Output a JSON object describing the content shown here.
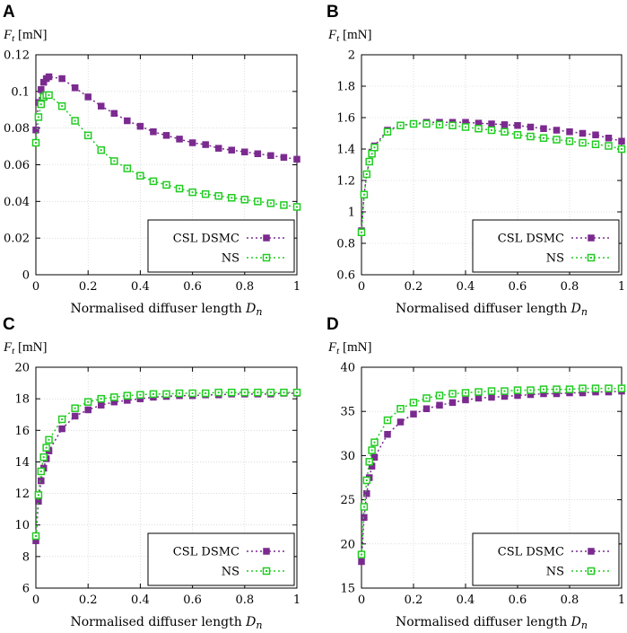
{
  "panels": [
    {
      "letter": "A",
      "y_label": "F_t [mN]",
      "chart_data": {
        "type": "line",
        "xlabel": "Normalised diffuser length D_n",
        "ylabel": "F_t [mN]",
        "xlim": [
          0,
          1
        ],
        "ylim": [
          0,
          0.12
        ],
        "xticks": [
          "0",
          "0.2",
          "0.4",
          "0.6",
          "0.8",
          "1"
        ],
        "yticks": [
          "0",
          "0.02",
          "0.04",
          "0.06",
          "0.08",
          "0.1",
          "0.12"
        ],
        "legend_position": "bottom-right",
        "series": [
          {
            "name": "CSL DSMC",
            "color": "#7b2a8f",
            "marker": "filled-square",
            "x": [
              0,
              0.01,
              0.02,
              0.03,
              0.04,
              0.05,
              0.1,
              0.15,
              0.2,
              0.25,
              0.3,
              0.35,
              0.4,
              0.45,
              0.5,
              0.55,
              0.6,
              0.65,
              0.7,
              0.75,
              0.8,
              0.85,
              0.9,
              0.95,
              1.0
            ],
            "values": [
              0.079,
              0.094,
              0.101,
              0.105,
              0.107,
              0.108,
              0.107,
              0.102,
              0.097,
              0.092,
              0.088,
              0.084,
              0.081,
              0.078,
              0.076,
              0.074,
              0.072,
              0.071,
              0.069,
              0.068,
              0.067,
              0.066,
              0.065,
              0.064,
              0.063
            ]
          },
          {
            "name": "NS",
            "color": "#22cc22",
            "marker": "open-square",
            "x": [
              0,
              0.01,
              0.02,
              0.03,
              0.04,
              0.05,
              0.1,
              0.15,
              0.2,
              0.25,
              0.3,
              0.35,
              0.4,
              0.45,
              0.5,
              0.55,
              0.6,
              0.65,
              0.7,
              0.75,
              0.8,
              0.85,
              0.9,
              0.95,
              1.0
            ],
            "values": [
              0.072,
              0.086,
              0.093,
              0.097,
              0.098,
              0.098,
              0.092,
              0.084,
              0.076,
              0.068,
              0.062,
              0.058,
              0.054,
              0.051,
              0.049,
              0.047,
              0.045,
              0.044,
              0.043,
              0.042,
              0.041,
              0.04,
              0.039,
              0.038,
              0.037
            ]
          }
        ]
      }
    },
    {
      "letter": "B",
      "y_label": "F_t [mN]",
      "chart_data": {
        "type": "line",
        "xlabel": "Normalised diffuser length D_n",
        "ylabel": "F_t [mN]",
        "xlim": [
          0,
          1
        ],
        "ylim": [
          0.6,
          2
        ],
        "xticks": [
          "0",
          "0.2",
          "0.4",
          "0.6",
          "0.8",
          "1"
        ],
        "yticks": [
          "0.6",
          "0.8",
          "1",
          "1.2",
          "1.4",
          "1.6",
          "1.8",
          "2"
        ],
        "legend_position": "bottom-right",
        "series": [
          {
            "name": "CSL DSMC",
            "color": "#7b2a8f",
            "marker": "filled-square",
            "x": [
              0,
              0.01,
              0.02,
              0.03,
              0.04,
              0.05,
              0.1,
              0.15,
              0.2,
              0.25,
              0.3,
              0.35,
              0.4,
              0.45,
              0.5,
              0.55,
              0.6,
              0.65,
              0.7,
              0.75,
              0.8,
              0.85,
              0.9,
              0.95,
              1.0
            ],
            "values": [
              0.88,
              1.11,
              1.24,
              1.32,
              1.38,
              1.42,
              1.52,
              1.55,
              1.56,
              1.57,
              1.57,
              1.57,
              1.57,
              1.565,
              1.56,
              1.555,
              1.55,
              1.54,
              1.53,
              1.52,
              1.51,
              1.5,
              1.49,
              1.47,
              1.45
            ]
          },
          {
            "name": "NS",
            "color": "#22cc22",
            "marker": "open-square",
            "x": [
              0,
              0.01,
              0.02,
              0.03,
              0.04,
              0.05,
              0.1,
              0.15,
              0.2,
              0.25,
              0.3,
              0.35,
              0.4,
              0.45,
              0.5,
              0.55,
              0.6,
              0.65,
              0.7,
              0.75,
              0.8,
              0.85,
              0.9,
              0.95,
              1.0
            ],
            "values": [
              0.87,
              1.11,
              1.24,
              1.32,
              1.37,
              1.41,
              1.51,
              1.55,
              1.56,
              1.56,
              1.555,
              1.55,
              1.54,
              1.53,
              1.52,
              1.51,
              1.49,
              1.48,
              1.47,
              1.46,
              1.45,
              1.44,
              1.43,
              1.42,
              1.4
            ]
          }
        ]
      }
    },
    {
      "letter": "C",
      "y_label": "F_t [mN]",
      "chart_data": {
        "type": "line",
        "xlabel": "Normalised diffuser length D_n",
        "ylabel": "F_t [mN]",
        "xlim": [
          0,
          1
        ],
        "ylim": [
          6,
          20
        ],
        "xticks": [
          "0",
          "0.2",
          "0.4",
          "0.6",
          "0.8",
          "1"
        ],
        "yticks": [
          "6",
          "8",
          "10",
          "12",
          "14",
          "16",
          "18",
          "20"
        ],
        "legend_position": "bottom-right",
        "series": [
          {
            "name": "CSL DSMC",
            "color": "#7b2a8f",
            "marker": "filled-square",
            "x": [
              0,
              0.01,
              0.02,
              0.03,
              0.04,
              0.05,
              0.1,
              0.15,
              0.2,
              0.25,
              0.3,
              0.35,
              0.4,
              0.45,
              0.5,
              0.55,
              0.6,
              0.65,
              0.7,
              0.75,
              0.8,
              0.85,
              0.9,
              0.95,
              1.0
            ],
            "values": [
              9.0,
              11.5,
              12.8,
              13.6,
              14.2,
              14.7,
              16.1,
              16.9,
              17.3,
              17.6,
              17.8,
              17.9,
              18.0,
              18.1,
              18.15,
              18.2,
              18.2,
              18.25,
              18.25,
              18.3,
              18.3,
              18.3,
              18.3,
              18.35,
              18.35
            ]
          },
          {
            "name": "NS",
            "color": "#22cc22",
            "marker": "open-square",
            "x": [
              0,
              0.01,
              0.02,
              0.03,
              0.04,
              0.05,
              0.1,
              0.15,
              0.2,
              0.25,
              0.3,
              0.35,
              0.4,
              0.45,
              0.5,
              0.55,
              0.6,
              0.65,
              0.7,
              0.75,
              0.8,
              0.85,
              0.9,
              0.95,
              1.0
            ],
            "values": [
              9.3,
              11.9,
              13.4,
              14.3,
              14.9,
              15.4,
              16.7,
              17.4,
              17.8,
              18.0,
              18.1,
              18.2,
              18.25,
              18.3,
              18.3,
              18.35,
              18.35,
              18.35,
              18.4,
              18.4,
              18.4,
              18.4,
              18.4,
              18.4,
              18.4
            ]
          }
        ]
      }
    },
    {
      "letter": "D",
      "y_label": "F_t [mN]",
      "chart_data": {
        "type": "line",
        "xlabel": "Normalised diffuser length D_n",
        "ylabel": "F_t [mN]",
        "xlim": [
          0,
          1
        ],
        "ylim": [
          15,
          40
        ],
        "xticks": [
          "0",
          "0.2",
          "0.4",
          "0.6",
          "0.8",
          "1"
        ],
        "yticks": [
          "15",
          "20",
          "25",
          "30",
          "35",
          "40"
        ],
        "legend_position": "bottom-right",
        "series": [
          {
            "name": "CSL DSMC",
            "color": "#7b2a8f",
            "marker": "filled-square",
            "x": [
              0,
              0.01,
              0.02,
              0.03,
              0.04,
              0.05,
              0.1,
              0.15,
              0.2,
              0.25,
              0.3,
              0.35,
              0.4,
              0.45,
              0.5,
              0.55,
              0.6,
              0.65,
              0.7,
              0.75,
              0.8,
              0.85,
              0.9,
              0.95,
              1.0
            ],
            "values": [
              18.0,
              23.0,
              25.7,
              27.5,
              28.8,
              29.8,
              32.4,
              33.8,
              34.7,
              35.3,
              35.7,
              36.0,
              36.3,
              36.5,
              36.6,
              36.7,
              36.8,
              36.9,
              37.0,
              37.0,
              37.1,
              37.1,
              37.2,
              37.2,
              37.3
            ]
          },
          {
            "name": "NS",
            "color": "#22cc22",
            "marker": "open-square",
            "x": [
              0,
              0.01,
              0.02,
              0.03,
              0.04,
              0.05,
              0.1,
              0.15,
              0.2,
              0.25,
              0.3,
              0.35,
              0.4,
              0.45,
              0.5,
              0.55,
              0.6,
              0.65,
              0.7,
              0.75,
              0.8,
              0.85,
              0.9,
              0.95,
              1.0
            ],
            "values": [
              18.8,
              24.2,
              27.2,
              29.3,
              30.6,
              31.5,
              34.0,
              35.3,
              36.0,
              36.5,
              36.8,
              37.0,
              37.1,
              37.2,
              37.3,
              37.3,
              37.4,
              37.4,
              37.5,
              37.5,
              37.5,
              37.6,
              37.6,
              37.6,
              37.6
            ]
          }
        ]
      }
    }
  ]
}
